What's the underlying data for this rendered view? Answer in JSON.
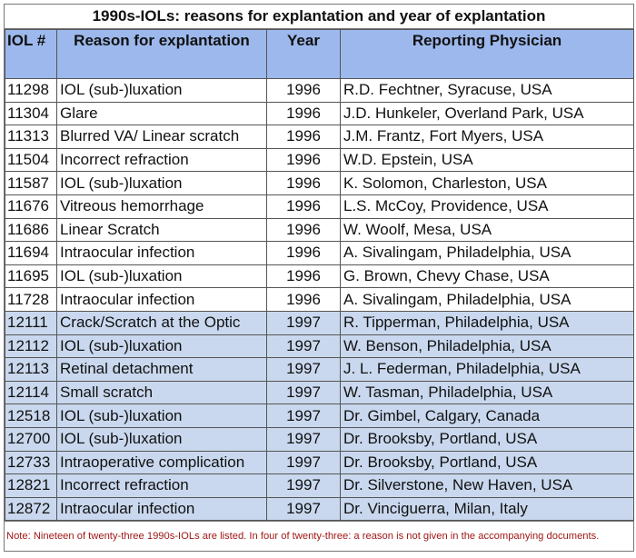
{
  "title": "1990s-IOLs: reasons for explantation and year of explantation",
  "headers": [
    "IOL #",
    "Reason for explantation",
    "Year",
    "Reporting Physician"
  ],
  "rows": [
    [
      "11298",
      "IOL (sub-)luxation",
      "1996",
      "R.D. Fechtner, Syracuse, USA"
    ],
    [
      "11304",
      "Glare",
      "1996",
      "J.D. Hunkeler, Overland Park, USA"
    ],
    [
      "11313",
      "Blurred VA/ Linear scratch",
      "1996",
      "J.M. Frantz, Fort Myers, USA"
    ],
    [
      "11504",
      "Incorrect refraction",
      "1996",
      "W.D. Epstein, USA"
    ],
    [
      "11587",
      "IOL (sub-)luxation",
      "1996",
      "K. Solomon, Charleston, USA"
    ],
    [
      "11676",
      "Vitreous hemorrhage",
      "1996",
      "L.S. McCoy, Providence, USA"
    ],
    [
      "11686",
      "Linear Scratch",
      "1996",
      "W. Woolf, Mesa, USA"
    ],
    [
      "11694",
      "Intraocular infection",
      "1996",
      "A. Sivalingam, Philadelphia, USA"
    ],
    [
      "11695",
      "IOL (sub-)luxation",
      "1996",
      "G. Brown, Chevy Chase, USA"
    ],
    [
      "11728",
      "Intraocular infection",
      "1996",
      "A. Sivalingam, Philadelphia, USA"
    ],
    [
      "12111",
      "Crack/Scratch at the Optic",
      "1997",
      "R. Tipperman, Philadelphia, USA"
    ],
    [
      "12112",
      "IOL (sub-)luxation",
      "1997",
      "W. Benson, Philadelphia, USA"
    ],
    [
      "12113",
      "Retinal detachment",
      "1997",
      "J. L. Federman, Philadelphia, USA"
    ],
    [
      "12114",
      "Small scratch",
      "1997",
      "W. Tasman, Philadelphia, USA"
    ],
    [
      "12518",
      "IOL (sub-)luxation",
      "1997",
      "Dr. Gimbel,  Calgary, Canada"
    ],
    [
      "12700",
      "IOL (sub-)luxation",
      "1997",
      "Dr. Brooksby,  Portland, USA"
    ],
    [
      "12733",
      "Intraoperative complication",
      "1997",
      "Dr. Brooksby,  Portland, USA"
    ],
    [
      "12821",
      "Incorrect refraction",
      "1997",
      "Dr. Silverstone, New Haven, USA"
    ],
    [
      "12872",
      "Intraocular infection",
      "1997",
      "Dr. Vinciguerra, Milan, Italy"
    ]
  ],
  "note": "Note:  Nineteen of twenty-three 1990s-IOLs are listed. In four of twenty-three: a reason is not given in the accompanying documents.",
  "colors": {
    "header": "#9db8ec",
    "row_1997": "#c9d8ee",
    "note": "#a01818"
  }
}
